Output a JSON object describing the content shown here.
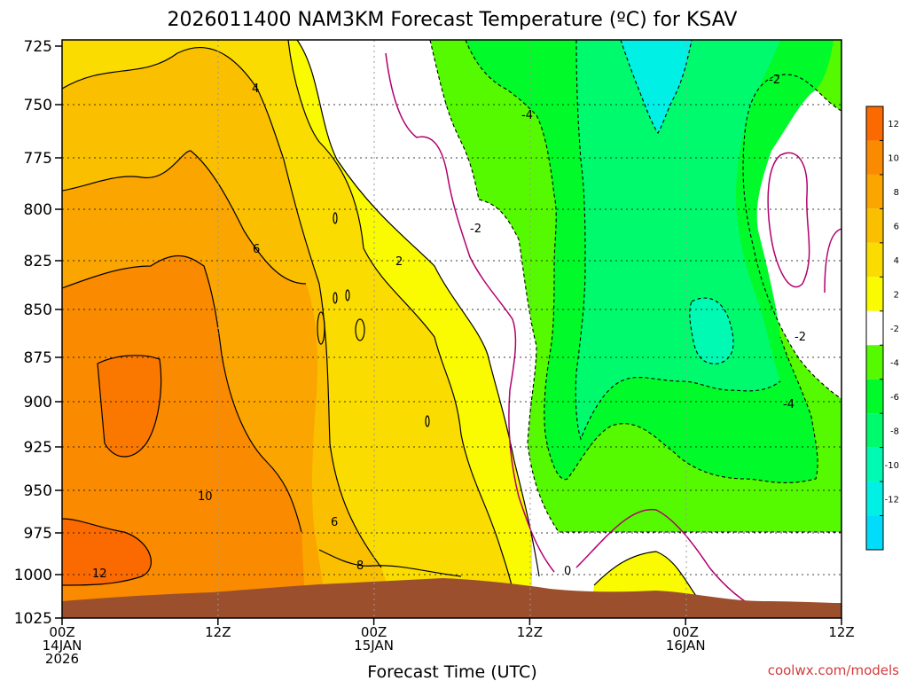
{
  "chart_data": {
    "type": "contour",
    "title": "2026011400 NAM3KM Forecast Temperature (ºC) for KSAV",
    "xlabel": "Forecast Time (UTC)",
    "credit": "coolwx.com/models",
    "y_ticks": [
      "725",
      "750",
      "775",
      "800",
      "825",
      "850",
      "875",
      "900",
      "925",
      "950",
      "975",
      "1000",
      "1025"
    ],
    "y_range": [
      725,
      1025
    ],
    "x_ticks": [
      {
        "line1": "00Z",
        "line2": "14JAN",
        "line3": "2026"
      },
      {
        "line1": "12Z",
        "line2": "",
        "line3": ""
      },
      {
        "line1": "00Z",
        "line2": "15JAN",
        "line3": ""
      },
      {
        "line1": "12Z",
        "line2": "",
        "line3": ""
      },
      {
        "line1": "00Z",
        "line2": "16JAN",
        "line3": ""
      },
      {
        "line1": "12Z",
        "line2": "",
        "line3": ""
      }
    ],
    "x_range_hours": [
      0,
      60
    ],
    "colorbar_ticks": [
      "12",
      "10",
      "8",
      "6",
      "4",
      "2",
      "-2",
      "-4",
      "-6",
      "-8",
      "-10",
      "-12"
    ],
    "colorbar_colors": [
      "#fa6a00",
      "#fa8a00",
      "#faa500",
      "#fac000",
      "#fadc00",
      "#fafa00",
      "#ffffff",
      "#55fa00",
      "#00fa2a",
      "#00fa6e",
      "#00fab4",
      "#00f0e6",
      "#00dcfa"
    ],
    "contour_labels": [
      "4",
      "6",
      "2",
      "10",
      "6",
      "8",
      "12",
      "-4",
      "-2",
      "-2",
      "-2",
      "-4",
      "0"
    ],
    "grid": true
  }
}
